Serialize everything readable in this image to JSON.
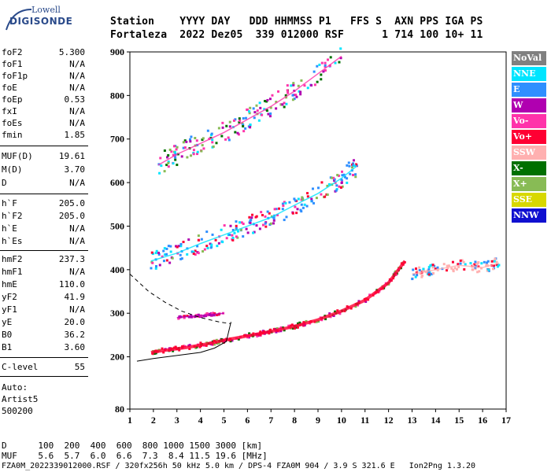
{
  "logo": {
    "line1": "Lowell",
    "line2": "DIGISONDE"
  },
  "header": {
    "labels": [
      "Station",
      "YYYY",
      "DAY",
      "DDD",
      "HHMMSS",
      "P1",
      "FFS",
      "S",
      "AXN",
      "PPS",
      "IGA",
      "PS"
    ],
    "values": [
      "Fortaleza",
      "2022",
      "Dez05",
      "339",
      "012000",
      "RSF",
      "",
      "1",
      "714",
      "100",
      "10+",
      "11"
    ],
    "line1": "Station    YYYY DAY   DDD HHMMSS P1   FFS S  AXN PPS IGA PS",
    "line2": "Fortaleza  2022 Dez05  339 012000 RSF      1 714 100 10+ 11"
  },
  "params": [
    {
      "label": "foF2",
      "value": "5.300"
    },
    {
      "label": "foF1",
      "value": "N/A"
    },
    {
      "label": "foF1p",
      "value": "N/A"
    },
    {
      "label": "foE",
      "value": "N/A"
    },
    {
      "label": "foEp",
      "value": "0.53"
    },
    {
      "label": "fxI",
      "value": "N/A"
    },
    {
      "label": "foEs",
      "value": "N/A"
    },
    {
      "label": "fmin",
      "value": "1.85"
    },
    {
      "label": "MUF(D)",
      "value": "19.61"
    },
    {
      "label": "M(D)",
      "value": "3.70"
    },
    {
      "label": "D",
      "value": "N/A"
    },
    {
      "label": "h`F",
      "value": "205.0"
    },
    {
      "label": "h`F2",
      "value": "205.0"
    },
    {
      "label": "h`E",
      "value": "N/A"
    },
    {
      "label": "h`Es",
      "value": "N/A"
    },
    {
      "label": "hmF2",
      "value": "237.3"
    },
    {
      "label": "hmF1",
      "value": "N/A"
    },
    {
      "label": "hmE",
      "value": "110.0"
    },
    {
      "label": "yF2",
      "value": "41.9"
    },
    {
      "label": "yF1",
      "value": "N/A"
    },
    {
      "label": "yE",
      "value": "20.0"
    },
    {
      "label": "B0",
      "value": "36.2"
    },
    {
      "label": "B1",
      "value": "3.60"
    },
    {
      "label": "C-level",
      "value": "55"
    }
  ],
  "auto": {
    "l1": "Auto:",
    "l2": "Artist5",
    "l3": "500200"
  },
  "legend": [
    {
      "label": "NoVal",
      "color": "#808080"
    },
    {
      "label": "NNE",
      "color": "#00e5ff"
    },
    {
      "label": "E",
      "color": "#2f8fff"
    },
    {
      "label": "W",
      "color": "#b000b0"
    },
    {
      "label": "Vo-",
      "color": "#ff33aa"
    },
    {
      "label": "Vo+",
      "color": "#ff0033"
    },
    {
      "label": "SSW",
      "color": "#ffb0b0"
    },
    {
      "label": "X-",
      "color": "#007000"
    },
    {
      "label": "X+",
      "color": "#88bb55"
    },
    {
      "label": "SSE",
      "color": "#d8d800"
    },
    {
      "label": "NNW",
      "color": "#1010d0"
    }
  ],
  "footer": {
    "line1": "D      100  200  400  600  800 1000 1500 3000 [km]",
    "line2": "MUF    5.6  5.7  6.0  6.6  7.3  8.4 11.5 19.6 [MHz]",
    "line3": "FZA0M_2022339012000.RSF / 320fx256h 50 kHz 5.0 km / DPS-4 FZA0M 904 / 3.9 S 321.6 E   Ion2Png 1.3.20"
  },
  "chart_data": {
    "type": "scatter",
    "xlim": [
      1,
      17
    ],
    "ylim": [
      80,
      900
    ],
    "x_ticks": [
      1,
      2,
      3,
      4,
      5,
      6,
      7,
      8,
      9,
      10,
      11,
      12,
      13,
      14,
      15,
      16,
      17
    ],
    "y_ticks": [
      80,
      200,
      300,
      400,
      500,
      600,
      700,
      800,
      900
    ],
    "grid": false,
    "legend_position": "right",
    "traces": [
      {
        "name": "O-trace 1st hop",
        "x": [
          1.9,
          2.5,
          3.5,
          4.5,
          5.0,
          6.0,
          7.0,
          8.0,
          9.0,
          10.0,
          11.0,
          12.0,
          12.7
        ],
        "y": [
          210,
          215,
          222,
          232,
          238,
          248,
          258,
          270,
          285,
          305,
          330,
          370,
          420
        ]
      },
      {
        "name": "O-trace 2nd hop",
        "x": [
          1.9,
          3.0,
          4.0,
          5.0,
          6.0,
          7.0,
          8.0,
          9.0,
          10.0,
          10.7
        ],
        "y": [
          420,
          438,
          460,
          480,
          500,
          520,
          548,
          575,
          610,
          640
        ]
      },
      {
        "name": "O-trace 3rd hop",
        "x": [
          2.2,
          3.0,
          4.0,
          5.0,
          6.0,
          7.0,
          8.0,
          9.0,
          10.0
        ],
        "y": [
          640,
          665,
          690,
          715,
          745,
          775,
          810,
          850,
          890
        ]
      },
      {
        "name": "Es-like traces",
        "x": [
          3.0,
          4.0,
          5.0
        ],
        "y": [
          290,
          295,
          300
        ]
      },
      {
        "name": "scattered echoes",
        "x": [
          13.0,
          14.0,
          15.0,
          16.0,
          16.7
        ],
        "y": [
          390,
          400,
          410,
          405,
          415
        ]
      }
    ],
    "profile_solid": {
      "x": [
        1.3,
        2.0,
        3.0,
        4.0,
        4.6,
        5.1,
        5.3
      ],
      "y": [
        190,
        196,
        203,
        210,
        220,
        235,
        280
      ]
    },
    "profile_dashed": {
      "x": [
        1.0,
        1.8,
        2.5,
        3.2,
        4.0,
        4.8,
        5.3
      ],
      "y": [
        390,
        350,
        325,
        305,
        290,
        280,
        276
      ]
    }
  }
}
